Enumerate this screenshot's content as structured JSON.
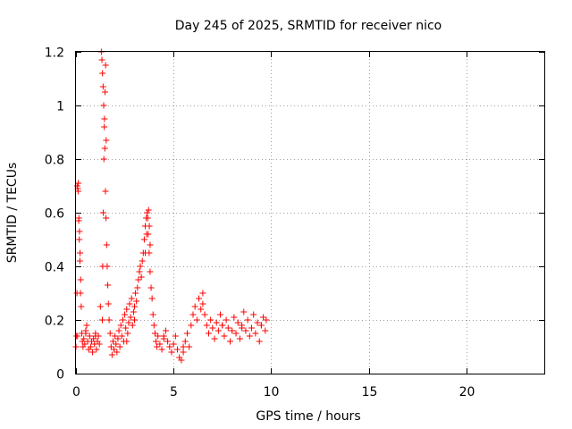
{
  "chart_data": {
    "type": "scatter",
    "title": "Day 245 of 2025, SRMTID for receiver nico",
    "xlabel": "GPS time / hours",
    "ylabel": "SRMTID / TECUs",
    "xlim": [
      0,
      24
    ],
    "ylim": [
      0,
      1.2
    ],
    "xticks": [
      0,
      5,
      10,
      15,
      20
    ],
    "xtick_labels": [
      "0",
      "5",
      "10",
      "15",
      "20"
    ],
    "yticks": [
      0,
      0.2,
      0.4,
      0.6,
      0.8,
      1.0,
      1.2
    ],
    "ytick_labels": [
      "0",
      "0.2",
      "0.4",
      "0.6",
      "0.8",
      "1",
      "1.2"
    ],
    "grid": true,
    "marker": "+",
    "series": [
      {
        "name": "SRMTID",
        "color": "#ff0000",
        "x": [
          0.0,
          0.03,
          0.06,
          0.09,
          0.12,
          0.15,
          0.18,
          0.21,
          0.24,
          0.27,
          0.3,
          0.33,
          0.36,
          0.4,
          0.45,
          0.5,
          0.55,
          0.6,
          0.65,
          0.7,
          0.75,
          0.8,
          0.85,
          0.9,
          0.95,
          1.0,
          1.05,
          1.1,
          1.15,
          1.2,
          1.25,
          1.3,
          1.33,
          1.36,
          1.39,
          1.42,
          1.45,
          1.48,
          1.51,
          1.54,
          1.57,
          1.6,
          1.63,
          1.66,
          1.7,
          1.75,
          1.8,
          1.85,
          1.9,
          1.95,
          2.0,
          2.05,
          2.1,
          2.15,
          2.2,
          2.25,
          2.3,
          2.35,
          2.4,
          2.45,
          2.5,
          2.55,
          2.6,
          2.65,
          2.7,
          2.75,
          2.8,
          2.85,
          2.9,
          2.95,
          3.0,
          3.05,
          3.1,
          3.15,
          3.2,
          3.25,
          3.3,
          3.35,
          3.4,
          3.45,
          3.5,
          3.55,
          3.6,
          3.65,
          3.7,
          3.75,
          3.8,
          3.85,
          3.9,
          3.95,
          4.0,
          4.05,
          4.1,
          4.15,
          4.2,
          4.3,
          4.4,
          4.5,
          4.6,
          4.7,
          4.8,
          4.9,
          5.0,
          5.1,
          5.2,
          5.3,
          5.4,
          5.5,
          5.6,
          5.7,
          5.8,
          5.9,
          6.0,
          6.1,
          6.2,
          6.3,
          6.4,
          6.5,
          6.6,
          6.7,
          6.8,
          6.9,
          7.0,
          7.1,
          7.2,
          7.3,
          7.4,
          7.5,
          7.6,
          7.7,
          7.8,
          7.9,
          8.0,
          8.1,
          8.2,
          8.3,
          8.4,
          8.5,
          8.6,
          8.7,
          8.8,
          8.9,
          9.0,
          9.1,
          9.2,
          9.3,
          9.4,
          9.5,
          9.6,
          9.7,
          9.75,
          0.05,
          0.08,
          0.11,
          0.14,
          0.17,
          0.2,
          0.23,
          1.35,
          1.37,
          1.4,
          1.43,
          1.46,
          1.49,
          1.52,
          1.55,
          3.55,
          3.62,
          3.68,
          3.72,
          3.76,
          3.8,
          0.5,
          1.0,
          2.6,
          3.0,
          4.5,
          5.5,
          6.5,
          7.5,
          8.5,
          9.5
        ],
        "y": [
          0.1,
          0.14,
          0.7,
          0.69,
          0.71,
          0.58,
          0.53,
          0.45,
          0.35,
          0.25,
          0.15,
          0.12,
          0.1,
          0.13,
          0.11,
          0.15,
          0.18,
          0.12,
          0.09,
          0.14,
          0.1,
          0.12,
          0.08,
          0.13,
          0.11,
          0.15,
          0.09,
          0.12,
          0.14,
          0.11,
          0.25,
          1.2,
          1.17,
          1.12,
          1.07,
          1.0,
          0.92,
          0.84,
          0.68,
          0.58,
          0.48,
          0.4,
          0.33,
          0.26,
          0.2,
          0.15,
          0.1,
          0.07,
          0.12,
          0.09,
          0.14,
          0.11,
          0.08,
          0.13,
          0.16,
          0.1,
          0.18,
          0.14,
          0.2,
          0.12,
          0.22,
          0.17,
          0.24,
          0.15,
          0.19,
          0.26,
          0.21,
          0.28,
          0.18,
          0.23,
          0.25,
          0.3,
          0.27,
          0.32,
          0.35,
          0.38,
          0.4,
          0.36,
          0.42,
          0.45,
          0.5,
          0.55,
          0.58,
          0.6,
          0.52,
          0.45,
          0.38,
          0.32,
          0.28,
          0.22,
          0.18,
          0.15,
          0.12,
          0.1,
          0.14,
          0.11,
          0.09,
          0.13,
          0.16,
          0.12,
          0.1,
          0.08,
          0.11,
          0.14,
          0.09,
          0.06,
          0.05,
          0.08,
          0.12,
          0.15,
          0.1,
          0.18,
          0.22,
          0.25,
          0.2,
          0.28,
          0.24,
          0.3,
          0.22,
          0.18,
          0.15,
          0.2,
          0.17,
          0.13,
          0.19,
          0.16,
          0.22,
          0.18,
          0.14,
          0.2,
          0.17,
          0.12,
          0.16,
          0.21,
          0.15,
          0.19,
          0.13,
          0.18,
          0.23,
          0.16,
          0.2,
          0.14,
          0.17,
          0.22,
          0.15,
          0.19,
          0.12,
          0.18,
          0.21,
          0.16,
          0.2,
          0.3,
          0.14,
          0.68,
          0.57,
          0.5,
          0.42,
          0.3,
          0.2,
          0.4,
          0.6,
          0.8,
          0.95,
          1.05,
          1.15,
          0.87,
          0.45,
          0.52,
          0.58,
          0.61,
          0.55,
          0.48,
          0.16,
          0.14,
          0.12,
          0.2,
          0.14,
          0.1,
          0.26,
          0.18,
          0.17,
          0.18
        ]
      }
    ]
  }
}
